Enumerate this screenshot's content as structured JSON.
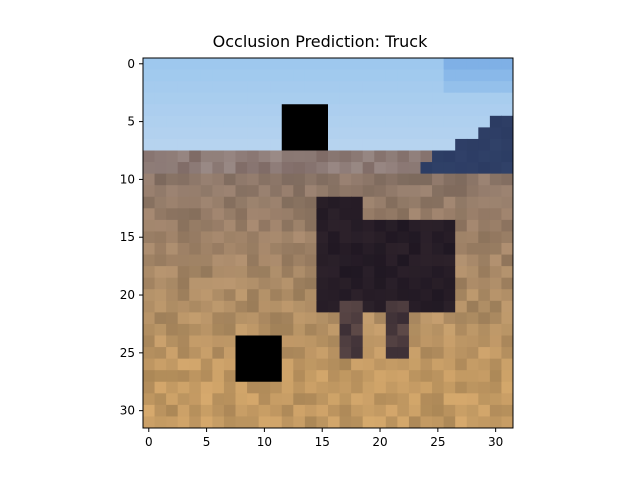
{
  "figure": {
    "title": "Occlusion Prediction: Truck"
  },
  "image": {
    "description_name": "occluded-photo",
    "sky_top": "#9ec8ee",
    "sky_bottom": "#b9d4ef",
    "mountain": "#2c3c63",
    "field_far": "#8d7769",
    "field_near": "#c39a63",
    "animal": "#1f1722",
    "occluder": "#000000"
  },
  "chart_data": {
    "type": "heatmap",
    "title": "Occlusion Prediction: Truck",
    "xlim": [
      -0.5,
      31.5
    ],
    "ylim": [
      31.5,
      -0.5
    ],
    "x_ticks": [
      0,
      5,
      10,
      15,
      20,
      25,
      30
    ],
    "y_ticks": [
      0,
      5,
      10,
      15,
      20,
      25,
      30
    ],
    "occlusion_patches": [
      {
        "x0": 12,
        "x1": 15,
        "y0": 4,
        "y1": 7
      },
      {
        "x0": 8,
        "x1": 11,
        "y0": 24,
        "y1": 27
      }
    ]
  }
}
